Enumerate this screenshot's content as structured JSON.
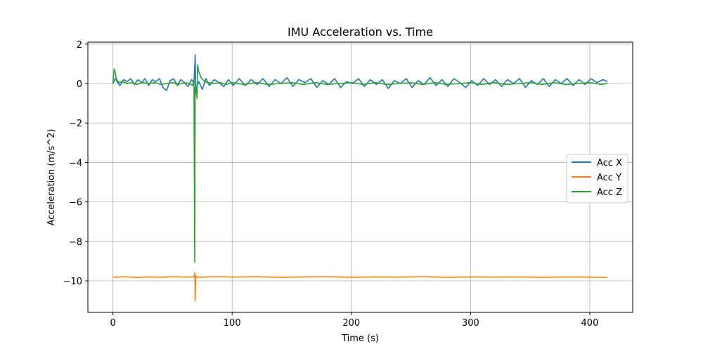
{
  "chart_data": {
    "type": "line",
    "title": "IMU Acceleration vs. Time",
    "xlabel": "Time (s)",
    "ylabel": "Acceleration (m/s^2)",
    "xlim": [
      -21,
      436
    ],
    "ylim": [
      -11.6,
      2.1
    ],
    "xticks": [
      0,
      100,
      200,
      300,
      400
    ],
    "yticks": [
      2,
      0,
      -2,
      -4,
      -6,
      -8,
      -10
    ],
    "xtick_labels": [
      "0",
      "100",
      "200",
      "300",
      "400"
    ],
    "ytick_labels": [
      "2",
      "0",
      "−2",
      "−4",
      "−6",
      "−8",
      "−10"
    ],
    "grid": true,
    "legend_position": "center-right",
    "series": [
      {
        "name": "Acc X",
        "color": "#1f77b4",
        "points": [
          [
            0,
            0.0
          ],
          [
            2,
            0.25
          ],
          [
            4,
            0.05
          ],
          [
            6,
            -0.1
          ],
          [
            9,
            0.2
          ],
          [
            12,
            0.1
          ],
          [
            15,
            0.25
          ],
          [
            18,
            -0.05
          ],
          [
            21,
            0.2
          ],
          [
            24,
            0.05
          ],
          [
            27,
            0.25
          ],
          [
            30,
            -0.1
          ],
          [
            33,
            0.2
          ],
          [
            36,
            0.1
          ],
          [
            39,
            0.25
          ],
          [
            42,
            -0.2
          ],
          [
            45,
            -0.35
          ],
          [
            48,
            0.15
          ],
          [
            51,
            0.25
          ],
          [
            54,
            -0.1
          ],
          [
            57,
            0.2
          ],
          [
            60,
            0.05
          ],
          [
            63,
            -0.15
          ],
          [
            66,
            0.2
          ],
          [
            68,
            0.0
          ],
          [
            69,
            1.45
          ],
          [
            69.5,
            -0.5
          ],
          [
            70,
            -0.2
          ],
          [
            72,
            0.1
          ],
          [
            75,
            -0.3
          ],
          [
            78,
            0.25
          ],
          [
            81,
            -0.1
          ],
          [
            85,
            0.2
          ],
          [
            89,
            0.05
          ],
          [
            93,
            -0.15
          ],
          [
            97,
            0.2
          ],
          [
            101,
            -0.1
          ],
          [
            106,
            0.25
          ],
          [
            111,
            -0.1
          ],
          [
            116,
            0.2
          ],
          [
            121,
            -0.05
          ],
          [
            126,
            0.25
          ],
          [
            131,
            -0.15
          ],
          [
            136,
            0.2
          ],
          [
            141,
            0.0
          ],
          [
            146,
            0.3
          ],
          [
            151,
            -0.15
          ],
          [
            156,
            0.2
          ],
          [
            161,
            0.05
          ],
          [
            166,
            0.25
          ],
          [
            171,
            -0.2
          ],
          [
            176,
            0.15
          ],
          [
            181,
            -0.05
          ],
          [
            186,
            0.25
          ],
          [
            191,
            -0.2
          ],
          [
            196,
            0.1
          ],
          [
            201,
            0.0
          ],
          [
            206,
            0.25
          ],
          [
            211,
            -0.15
          ],
          [
            216,
            0.2
          ],
          [
            221,
            -0.05
          ],
          [
            226,
            0.2
          ],
          [
            231,
            -0.25
          ],
          [
            236,
            0.15
          ],
          [
            241,
            0.0
          ],
          [
            246,
            0.25
          ],
          [
            251,
            -0.2
          ],
          [
            256,
            0.15
          ],
          [
            261,
            -0.05
          ],
          [
            266,
            0.3
          ],
          [
            271,
            -0.1
          ],
          [
            276,
            0.2
          ],
          [
            281,
            -0.15
          ],
          [
            286,
            0.25
          ],
          [
            291,
            0.05
          ],
          [
            296,
            -0.2
          ],
          [
            301,
            0.15
          ],
          [
            306,
            -0.1
          ],
          [
            311,
            0.25
          ],
          [
            316,
            -0.05
          ],
          [
            321,
            0.2
          ],
          [
            326,
            -0.15
          ],
          [
            331,
            0.2
          ],
          [
            336,
            0.0
          ],
          [
            341,
            0.25
          ],
          [
            346,
            -0.2
          ],
          [
            351,
            0.15
          ],
          [
            356,
            -0.05
          ],
          [
            361,
            0.25
          ],
          [
            366,
            -0.15
          ],
          [
            371,
            0.2
          ],
          [
            376,
            0.0
          ],
          [
            381,
            0.25
          ],
          [
            386,
            -0.1
          ],
          [
            391,
            0.2
          ],
          [
            396,
            -0.05
          ],
          [
            401,
            0.25
          ],
          [
            406,
            0.05
          ],
          [
            411,
            0.2
          ],
          [
            415,
            0.1
          ]
        ]
      },
      {
        "name": "Acc Y",
        "color": "#ff7f0e",
        "points": [
          [
            0,
            -9.82
          ],
          [
            10,
            -9.79
          ],
          [
            20,
            -9.83
          ],
          [
            30,
            -9.8
          ],
          [
            40,
            -9.82
          ],
          [
            50,
            -9.79
          ],
          [
            60,
            -9.81
          ],
          [
            68,
            -9.8
          ],
          [
            68.8,
            -9.6
          ],
          [
            69,
            -11.0
          ],
          [
            69.5,
            -9.75
          ],
          [
            71,
            -9.82
          ],
          [
            80,
            -9.8
          ],
          [
            90,
            -9.79
          ],
          [
            100,
            -9.81
          ],
          [
            120,
            -9.79
          ],
          [
            140,
            -9.82
          ],
          [
            160,
            -9.8
          ],
          [
            180,
            -9.79
          ],
          [
            200,
            -9.82
          ],
          [
            220,
            -9.8
          ],
          [
            240,
            -9.81
          ],
          [
            260,
            -9.79
          ],
          [
            280,
            -9.82
          ],
          [
            300,
            -9.8
          ],
          [
            320,
            -9.81
          ],
          [
            340,
            -9.8
          ],
          [
            360,
            -9.82
          ],
          [
            380,
            -9.8
          ],
          [
            400,
            -9.81
          ],
          [
            415,
            -9.83
          ]
        ]
      },
      {
        "name": "Acc Z",
        "color": "#2ca02c",
        "points": [
          [
            0,
            0.0
          ],
          [
            1,
            0.75
          ],
          [
            2,
            0.55
          ],
          [
            3,
            0.2
          ],
          [
            5,
            0.05
          ],
          [
            8,
            0.1
          ],
          [
            12,
            0.0
          ],
          [
            16,
            0.05
          ],
          [
            20,
            -0.05
          ],
          [
            25,
            0.05
          ],
          [
            30,
            0.0
          ],
          [
            35,
            0.05
          ],
          [
            40,
            -0.05
          ],
          [
            45,
            0.0
          ],
          [
            50,
            0.05
          ],
          [
            55,
            -0.05
          ],
          [
            60,
            0.05
          ],
          [
            64,
            0.0
          ],
          [
            67,
            -0.1
          ],
          [
            68,
            0.2
          ],
          [
            68.6,
            -9.05
          ],
          [
            69,
            -0.2
          ],
          [
            70,
            -0.3
          ],
          [
            70.5,
            -0.75
          ],
          [
            71,
            0.95
          ],
          [
            72,
            0.6
          ],
          [
            74,
            0.3
          ],
          [
            77,
            0.1
          ],
          [
            80,
            0.05
          ],
          [
            85,
            0.0
          ],
          [
            90,
            0.05
          ],
          [
            95,
            -0.05
          ],
          [
            100,
            0.05
          ],
          [
            110,
            -0.05
          ],
          [
            120,
            0.05
          ],
          [
            130,
            -0.05
          ],
          [
            140,
            0.0
          ],
          [
            150,
            0.05
          ],
          [
            160,
            -0.05
          ],
          [
            170,
            0.05
          ],
          [
            180,
            -0.05
          ],
          [
            190,
            0.0
          ],
          [
            200,
            0.05
          ],
          [
            210,
            -0.05
          ],
          [
            220,
            0.05
          ],
          [
            230,
            -0.05
          ],
          [
            240,
            0.0
          ],
          [
            250,
            0.05
          ],
          [
            260,
            -0.05
          ],
          [
            270,
            0.05
          ],
          [
            280,
            -0.05
          ],
          [
            290,
            0.0
          ],
          [
            300,
            0.05
          ],
          [
            310,
            -0.05
          ],
          [
            320,
            0.05
          ],
          [
            330,
            -0.05
          ],
          [
            340,
            0.0
          ],
          [
            350,
            0.05
          ],
          [
            360,
            -0.05
          ],
          [
            370,
            0.05
          ],
          [
            380,
            -0.05
          ],
          [
            390,
            0.0
          ],
          [
            400,
            0.05
          ],
          [
            410,
            -0.05
          ],
          [
            415,
            0.02
          ]
        ]
      }
    ]
  }
}
